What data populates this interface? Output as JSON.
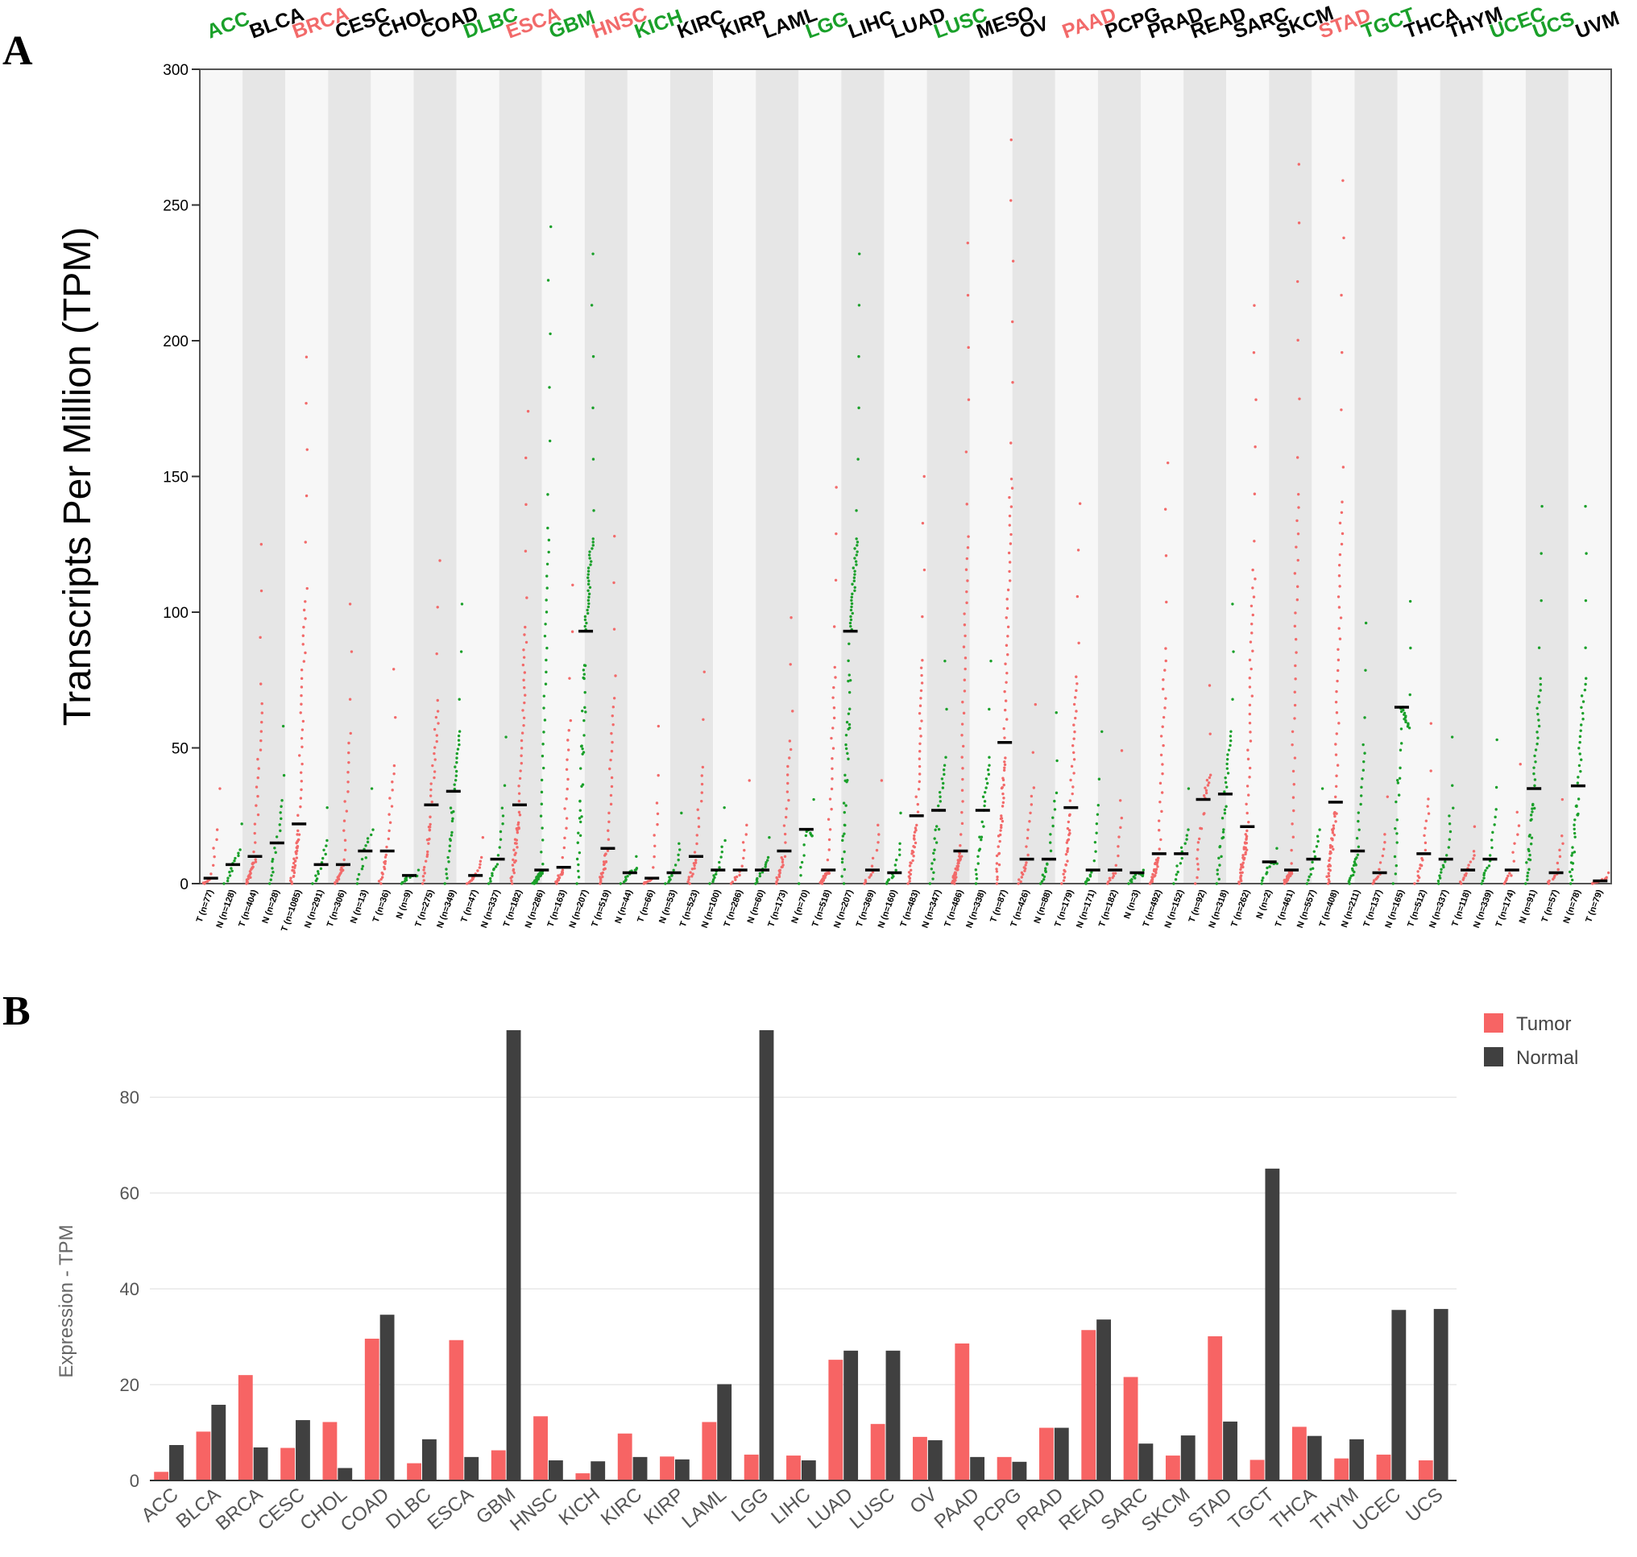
{
  "chart_data": [
    {
      "panel": "A",
      "type": "scatter",
      "ylabel": "Transcripts Per Million (TPM)",
      "ylim": [
        0,
        300
      ],
      "yticks": [
        0,
        50,
        100,
        150,
        200,
        250,
        300
      ],
      "cancers": [
        {
          "name": "ACC",
          "color": "#1aa02a"
        },
        {
          "name": "BLCA",
          "color": "#000000"
        },
        {
          "name": "BRCA",
          "color": "#f26a6a"
        },
        {
          "name": "CESC",
          "color": "#000000"
        },
        {
          "name": "CHOL",
          "color": "#000000"
        },
        {
          "name": "COAD",
          "color": "#000000"
        },
        {
          "name": "DLBC",
          "color": "#1aa02a"
        },
        {
          "name": "ESCA",
          "color": "#f26a6a"
        },
        {
          "name": "GBM",
          "color": "#1aa02a"
        },
        {
          "name": "HNSC",
          "color": "#f26a6a"
        },
        {
          "name": "KICH",
          "color": "#1aa02a"
        },
        {
          "name": "KIRC",
          "color": "#000000"
        },
        {
          "name": "KIRP",
          "color": "#000000"
        },
        {
          "name": "LAML",
          "color": "#000000"
        },
        {
          "name": "LGG",
          "color": "#1aa02a"
        },
        {
          "name": "LIHC",
          "color": "#000000"
        },
        {
          "name": "LUAD",
          "color": "#000000"
        },
        {
          "name": "LUSC",
          "color": "#1aa02a"
        },
        {
          "name": "MESO",
          "color": "#000000"
        },
        {
          "name": "OV",
          "color": "#000000"
        },
        {
          "name": "PAAD",
          "color": "#f26a6a"
        },
        {
          "name": "PCPG",
          "color": "#000000"
        },
        {
          "name": "PRAD",
          "color": "#000000"
        },
        {
          "name": "READ",
          "color": "#000000"
        },
        {
          "name": "SARC",
          "color": "#000000"
        },
        {
          "name": "SKCM",
          "color": "#000000"
        },
        {
          "name": "STAD",
          "color": "#f26a6a"
        },
        {
          "name": "TGCT",
          "color": "#1aa02a"
        },
        {
          "name": "THCA",
          "color": "#000000"
        },
        {
          "name": "THYM",
          "color": "#000000"
        },
        {
          "name": "UCEC",
          "color": "#1aa02a"
        },
        {
          "name": "UCS",
          "color": "#1aa02a"
        },
        {
          "name": "UVM",
          "color": "#000000"
        }
      ],
      "groups": [
        {
          "label": "T (n=77)",
          "kind": "T",
          "median": 2,
          "max": 35
        },
        {
          "label": "N (n=128)",
          "kind": "N",
          "median": 7,
          "max": 22
        },
        {
          "label": "T (n=404)",
          "kind": "T",
          "median": 10,
          "max": 125
        },
        {
          "label": "N (n=28)",
          "kind": "N",
          "median": 15,
          "max": 58
        },
        {
          "label": "T (n=1085)",
          "kind": "T",
          "median": 22,
          "max": 194
        },
        {
          "label": "N (n=291)",
          "kind": "N",
          "median": 7,
          "max": 28
        },
        {
          "label": "T (n=306)",
          "kind": "T",
          "median": 7,
          "max": 103
        },
        {
          "label": "N (n=13)",
          "kind": "N",
          "median": 12,
          "max": 35
        },
        {
          "label": "T (n=36)",
          "kind": "T",
          "median": 12,
          "max": 79
        },
        {
          "label": "N (n=9)",
          "kind": "N",
          "median": 3,
          "max": 5
        },
        {
          "label": "T (n=275)",
          "kind": "T",
          "median": 29,
          "max": 119
        },
        {
          "label": "N (n=349)",
          "kind": "N",
          "median": 34,
          "max": 103
        },
        {
          "label": "T (n=47)",
          "kind": "T",
          "median": 3,
          "max": 17
        },
        {
          "label": "N (n=337)",
          "kind": "N",
          "median": 9,
          "max": 54
        },
        {
          "label": "T (n=182)",
          "kind": "T",
          "median": 29,
          "max": 174
        },
        {
          "label": "N (n=286)",
          "kind": "N",
          "median": 5,
          "max": 242
        },
        {
          "label": "T (n=163)",
          "kind": "T",
          "median": 6,
          "max": 110
        },
        {
          "label": "N (n=207)",
          "kind": "N",
          "median": 93,
          "max": 232
        },
        {
          "label": "T (n=519)",
          "kind": "T",
          "median": 13,
          "max": 128
        },
        {
          "label": "N (n=44)",
          "kind": "N",
          "median": 4,
          "max": 10
        },
        {
          "label": "T (n=66)",
          "kind": "T",
          "median": 2,
          "max": 58
        },
        {
          "label": "N (n=53)",
          "kind": "N",
          "median": 4,
          "max": 26
        },
        {
          "label": "T (n=523)",
          "kind": "T",
          "median": 10,
          "max": 78
        },
        {
          "label": "N (n=100)",
          "kind": "N",
          "median": 5,
          "max": 28
        },
        {
          "label": "T (n=286)",
          "kind": "T",
          "median": 5,
          "max": 38
        },
        {
          "label": "N (n=60)",
          "kind": "N",
          "median": 5,
          "max": 17
        },
        {
          "label": "T (n=173)",
          "kind": "T",
          "median": 12,
          "max": 98
        },
        {
          "label": "N (n=70)",
          "kind": "N",
          "median": 20,
          "max": 31
        },
        {
          "label": "T (n=518)",
          "kind": "T",
          "median": 5,
          "max": 146
        },
        {
          "label": "N (n=207)",
          "kind": "N",
          "median": 93,
          "max": 232
        },
        {
          "label": "T (n=369)",
          "kind": "T",
          "median": 5,
          "max": 38
        },
        {
          "label": "N (n=160)",
          "kind": "N",
          "median": 4,
          "max": 26
        },
        {
          "label": "T (n=483)",
          "kind": "T",
          "median": 25,
          "max": 150
        },
        {
          "label": "N (n=347)",
          "kind": "N",
          "median": 27,
          "max": 82
        },
        {
          "label": "T (n=486)",
          "kind": "T",
          "median": 12,
          "max": 236
        },
        {
          "label": "N (n=338)",
          "kind": "N",
          "median": 27,
          "max": 82
        },
        {
          "label": "T (n=87)",
          "kind": "T",
          "median": 52,
          "max": 274
        },
        {
          "label": "T (n=426)",
          "kind": "T",
          "median": 9,
          "max": 66
        },
        {
          "label": "N (n=88)",
          "kind": "N",
          "median": 9,
          "max": 63
        },
        {
          "label": "T (n=179)",
          "kind": "T",
          "median": 28,
          "max": 140
        },
        {
          "label": "N (n=171)",
          "kind": "N",
          "median": 5,
          "max": 56
        },
        {
          "label": "T (n=182)",
          "kind": "T",
          "median": 5,
          "max": 49
        },
        {
          "label": "N (n=3)",
          "kind": "N",
          "median": 4,
          "max": 5
        },
        {
          "label": "T (n=492)",
          "kind": "T",
          "median": 11,
          "max": 155
        },
        {
          "label": "N (n=152)",
          "kind": "N",
          "median": 11,
          "max": 35
        },
        {
          "label": "T (n=92)",
          "kind": "T",
          "median": 31,
          "max": 73
        },
        {
          "label": "N (n=318)",
          "kind": "N",
          "median": 33,
          "max": 103
        },
        {
          "label": "T (n=262)",
          "kind": "T",
          "median": 21,
          "max": 213
        },
        {
          "label": "N (n=2)",
          "kind": "N",
          "median": 8,
          "max": 13
        },
        {
          "label": "T (n=461)",
          "kind": "T",
          "median": 5,
          "max": 265
        },
        {
          "label": "N (n=557)",
          "kind": "N",
          "median": 9,
          "max": 35
        },
        {
          "label": "T (n=408)",
          "kind": "T",
          "median": 30,
          "max": 259
        },
        {
          "label": "N (n=211)",
          "kind": "N",
          "median": 12,
          "max": 96
        },
        {
          "label": "T (n=137)",
          "kind": "T",
          "median": 4,
          "max": 32
        },
        {
          "label": "N (n=165)",
          "kind": "N",
          "median": 65,
          "max": 104
        },
        {
          "label": "T (n=512)",
          "kind": "T",
          "median": 11,
          "max": 59
        },
        {
          "label": "N (n=337)",
          "kind": "N",
          "median": 9,
          "max": 54
        },
        {
          "label": "T (n=118)",
          "kind": "T",
          "median": 5,
          "max": 21
        },
        {
          "label": "N (n=339)",
          "kind": "N",
          "median": 9,
          "max": 53
        },
        {
          "label": "T (n=174)",
          "kind": "T",
          "median": 5,
          "max": 44
        },
        {
          "label": "N (n=91)",
          "kind": "N",
          "median": 35,
          "max": 139
        },
        {
          "label": "T (n=57)",
          "kind": "T",
          "median": 4,
          "max": 31
        },
        {
          "label": "N (n=78)",
          "kind": "N",
          "median": 36,
          "max": 139
        },
        {
          "label": "T (n=79)",
          "kind": "T",
          "median": 1,
          "max": 4
        }
      ]
    },
    {
      "panel": "B",
      "type": "bar",
      "ylabel": "Expression - TPM",
      "ylim": [
        0,
        95
      ],
      "yticks": [
        0,
        20,
        40,
        60,
        80
      ],
      "categories": [
        "ACC",
        "BLCA",
        "BRCA",
        "CESC",
        "CHOL",
        "COAD",
        "DLBC",
        "ESCA",
        "GBM",
        "HNSC",
        "KICH",
        "KIRC",
        "KIRP",
        "LAML",
        "LGG",
        "LIHC",
        "LUAD",
        "LUSC",
        "OV",
        "PAAD",
        "PCPG",
        "PRAD",
        "READ",
        "SARC",
        "SKCM",
        "STAD",
        "TGCT",
        "THCA",
        "THYM",
        "UCEC",
        "UCS"
      ],
      "series": [
        {
          "name": "Tumor",
          "color": "#f76464",
          "values": [
            1.8,
            10.2,
            22.0,
            6.8,
            12.2,
            29.6,
            3.6,
            29.3,
            6.3,
            13.4,
            1.5,
            9.8,
            5.0,
            12.2,
            5.4,
            5.2,
            25.2,
            11.8,
            9.1,
            28.6,
            4.9,
            11.0,
            31.4,
            21.6,
            5.2,
            30.1,
            4.3,
            11.2,
            4.6,
            5.4,
            4.2
          ]
        },
        {
          "name": "Normal",
          "color": "#404040",
          "values": [
            7.4,
            15.8,
            6.9,
            12.6,
            2.6,
            34.6,
            8.6,
            4.9,
            94.0,
            4.2,
            4.0,
            4.9,
            4.4,
            20.1,
            94.0,
            4.2,
            27.1,
            27.1,
            8.4,
            4.9,
            3.9,
            11.0,
            33.6,
            7.7,
            9.4,
            12.3,
            65.1,
            9.3,
            8.6,
            35.6,
            35.8
          ]
        }
      ]
    }
  ],
  "panels": {
    "a": "A",
    "b": "B"
  }
}
